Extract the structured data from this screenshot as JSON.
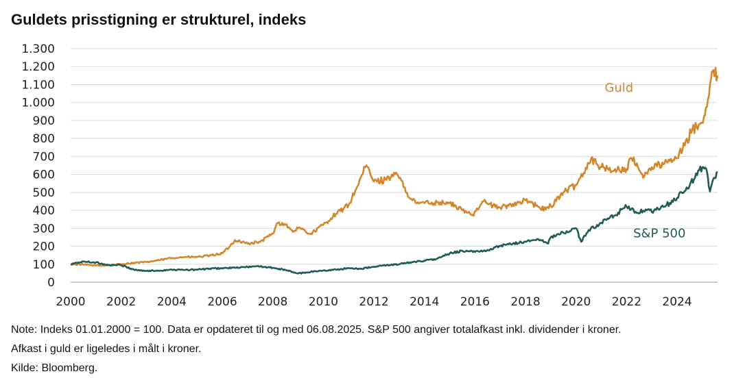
{
  "header": {
    "title": "Guldets prisstigning er strukturel, indeks"
  },
  "notes": {
    "line1": "Note: Indeks 01.01.2000 = 100. Data er opdateret til og med 06.08.2025. S&P 500 angiver totalafkast inkl. dividender i kroner.",
    "line2": "Afkast i guld er ligeledes i målt i kroner.",
    "line3": "Kilde: Bloomberg."
  },
  "chart_data": {
    "type": "line",
    "title": "Guldets prisstigning er strukturel, indeks",
    "xlabel": "",
    "ylabel": "",
    "xlim": [
      2000,
      2025.6
    ],
    "ylim": [
      0,
      1300
    ],
    "grid": true,
    "y_ticks": [
      0,
      100,
      200,
      300,
      400,
      500,
      600,
      700,
      800,
      900,
      1000,
      1100,
      1200,
      1300
    ],
    "y_tick_labels": [
      "0",
      "100",
      "200",
      "300",
      "400",
      "500",
      "600",
      "700",
      "800",
      "900",
      "1.000",
      "1.100",
      "1.200",
      "1.300"
    ],
    "x_ticks": [
      2000,
      2002,
      2004,
      2006,
      2008,
      2010,
      2012,
      2014,
      2016,
      2018,
      2020,
      2022,
      2024
    ],
    "x_tick_labels": [
      "2000",
      "2002",
      "2004",
      "2006",
      "2008",
      "2010",
      "2012",
      "2014",
      "2016",
      "2018",
      "2020",
      "2022",
      "2024"
    ],
    "series": [
      {
        "name": "Guld",
        "color": "#d4862b",
        "points": [
          [
            2000,
            100
          ],
          [
            2000.5,
            98
          ],
          [
            2001,
            92
          ],
          [
            2001.5,
            95
          ],
          [
            2002,
            100
          ],
          [
            2002.5,
            108
          ],
          [
            2003,
            112
          ],
          [
            2003.5,
            122
          ],
          [
            2004,
            135
          ],
          [
            2004.5,
            140
          ],
          [
            2005,
            140
          ],
          [
            2005.5,
            148
          ],
          [
            2006,
            160
          ],
          [
            2006.3,
            200
          ],
          [
            2006.5,
            235
          ],
          [
            2007,
            215
          ],
          [
            2007.5,
            225
          ],
          [
            2008,
            270
          ],
          [
            2008.2,
            330
          ],
          [
            2008.5,
            320
          ],
          [
            2008.8,
            280
          ],
          [
            2009,
            300
          ],
          [
            2009.5,
            270
          ],
          [
            2010,
            320
          ],
          [
            2010.5,
            380
          ],
          [
            2011,
            430
          ],
          [
            2011.3,
            520
          ],
          [
            2011.7,
            650
          ],
          [
            2012,
            560
          ],
          [
            2012.5,
            570
          ],
          [
            2012.8,
            610
          ],
          [
            2013,
            580
          ],
          [
            2013.4,
            470
          ],
          [
            2013.7,
            440
          ],
          [
            2014,
            440
          ],
          [
            2014.5,
            445
          ],
          [
            2015,
            440
          ],
          [
            2015.5,
            400
          ],
          [
            2015.9,
            375
          ],
          [
            2016.3,
            450
          ],
          [
            2016.8,
            420
          ],
          [
            2017,
            415
          ],
          [
            2017.5,
            435
          ],
          [
            2018,
            455
          ],
          [
            2018.5,
            420
          ],
          [
            2018.8,
            405
          ],
          [
            2019,
            425
          ],
          [
            2019.5,
            500
          ],
          [
            2020,
            540
          ],
          [
            2020.6,
            690
          ],
          [
            2020.8,
            660
          ],
          [
            2021,
            640
          ],
          [
            2021.5,
            620
          ],
          [
            2022,
            630
          ],
          [
            2022.2,
            690
          ],
          [
            2022.7,
            590
          ],
          [
            2023,
            640
          ],
          [
            2023.5,
            660
          ],
          [
            2024,
            690
          ],
          [
            2024.3,
            760
          ],
          [
            2024.6,
            850
          ],
          [
            2024.9,
            880
          ],
          [
            2025.1,
            930
          ],
          [
            2025.3,
            1100
          ],
          [
            2025.4,
            1170
          ],
          [
            2025.6,
            1150
          ]
        ]
      },
      {
        "name": "S&P 500",
        "color": "#1f5c58",
        "points": [
          [
            2000,
            100
          ],
          [
            2000.5,
            115
          ],
          [
            2001,
            110
          ],
          [
            2001.5,
            95
          ],
          [
            2002,
            95
          ],
          [
            2002.5,
            70
          ],
          [
            2003,
            62
          ],
          [
            2003.5,
            65
          ],
          [
            2004,
            70
          ],
          [
            2004.5,
            68
          ],
          [
            2005,
            70
          ],
          [
            2005.5,
            75
          ],
          [
            2006,
            78
          ],
          [
            2006.5,
            80
          ],
          [
            2007,
            85
          ],
          [
            2007.5,
            88
          ],
          [
            2008,
            80
          ],
          [
            2008.5,
            68
          ],
          [
            2009,
            48
          ],
          [
            2009.5,
            58
          ],
          [
            2010,
            65
          ],
          [
            2010.5,
            70
          ],
          [
            2011,
            78
          ],
          [
            2011.5,
            75
          ],
          [
            2012,
            85
          ],
          [
            2012.5,
            95
          ],
          [
            2013,
            100
          ],
          [
            2013.5,
            112
          ],
          [
            2014,
            120
          ],
          [
            2014.5,
            130
          ],
          [
            2015,
            160
          ],
          [
            2015.5,
            175
          ],
          [
            2016,
            168
          ],
          [
            2016.5,
            180
          ],
          [
            2017,
            200
          ],
          [
            2017.5,
            215
          ],
          [
            2018,
            225
          ],
          [
            2018.5,
            240
          ],
          [
            2018.9,
            215
          ],
          [
            2019,
            250
          ],
          [
            2019.5,
            275
          ],
          [
            2020,
            300
          ],
          [
            2020.2,
            225
          ],
          [
            2020.5,
            290
          ],
          [
            2021,
            330
          ],
          [
            2021.5,
            370
          ],
          [
            2022,
            420
          ],
          [
            2022.4,
            385
          ],
          [
            2022.8,
            400
          ],
          [
            2023,
            390
          ],
          [
            2023.5,
            420
          ],
          [
            2024,
            470
          ],
          [
            2024.5,
            540
          ],
          [
            2025,
            640
          ],
          [
            2025.2,
            600
          ],
          [
            2025.3,
            505
          ],
          [
            2025.45,
            580
          ],
          [
            2025.6,
            615
          ]
        ]
      }
    ],
    "annotations": [
      {
        "text": "Guld",
        "series": "Guld"
      },
      {
        "text": "S&P 500",
        "series": "S&P 500"
      }
    ]
  }
}
